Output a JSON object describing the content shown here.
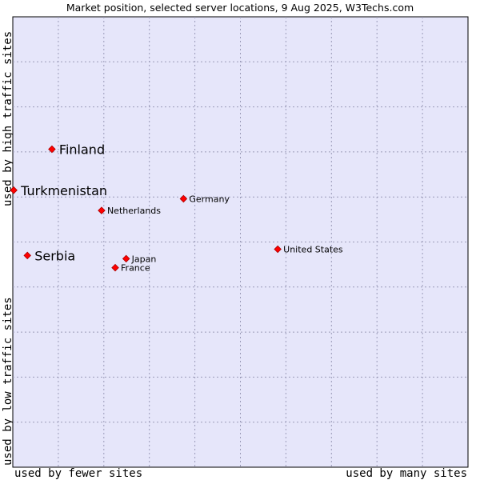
{
  "chart_data": {
    "type": "scatter",
    "title": "Market position, selected server locations, 9 Aug 2025, W3Techs.com",
    "ylabel_top": "used by high traffic sites",
    "ylabel_bottom": "used by low traffic sites",
    "xlabel_left": "used by fewer sites",
    "xlabel_right": "used by many sites",
    "xlim": [
      0,
      100
    ],
    "ylim": [
      0,
      100
    ],
    "grid": true,
    "points": [
      {
        "name": "Finland",
        "x": 8.6,
        "y": 70.6,
        "highlight": true
      },
      {
        "name": "Turkmenistan",
        "x": 0.2,
        "y": 61.5,
        "highlight": true
      },
      {
        "name": "Serbia",
        "x": 3.2,
        "y": 47.0,
        "highlight": true
      },
      {
        "name": "Germany",
        "x": 37.5,
        "y": 59.6,
        "highlight": false
      },
      {
        "name": "Netherlands",
        "x": 19.5,
        "y": 57.0,
        "highlight": false
      },
      {
        "name": "United States",
        "x": 58.2,
        "y": 48.4,
        "highlight": false
      },
      {
        "name": "Japan",
        "x": 24.9,
        "y": 46.3,
        "highlight": false
      },
      {
        "name": "France",
        "x": 22.5,
        "y": 44.3,
        "highlight": false
      }
    ]
  },
  "colors": {
    "plot_bg": "#e6e6fa",
    "grid": "#9a9ab8",
    "marker": "#ff0000",
    "marker_edge": "#aa0000"
  }
}
